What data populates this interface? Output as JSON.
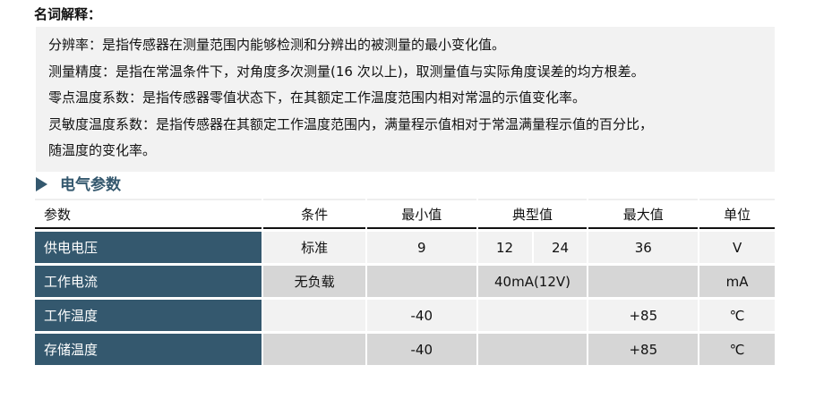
{
  "glossary": {
    "title": "名词解释：",
    "items": [
      "分辨率：是指传感器在测量范围内能够检测和分辨出的被测量的最小变化值。",
      "测量精度：是指在常温条件下，对角度多次测量(16 次以上)，取测量值与实际角度误差的均方根差。",
      "零点温度系数：是指传感器零值状态下，在其额定工作温度范围内相对常温的示值变化率。",
      "灵敏度温度系数：是指传感器在其额定工作温度范围内，满量程示值相对于常温满量程示值的百分比，",
      "随温度的变化率。"
    ]
  },
  "section": {
    "title": "电气参数",
    "icon": "triangle-right-icon"
  },
  "table": {
    "headers": [
      "参数",
      "条件",
      "最小值",
      "典型值",
      "最大值",
      "单位"
    ],
    "rows": [
      {
        "param": "供电电压",
        "cond": "标准",
        "min": "9",
        "typ1": "12",
        "typ2": "24",
        "max": "36",
        "unit": "V"
      },
      {
        "param": "工作电流",
        "cond": "无负载",
        "min": "",
        "typ": "40mA(12V)",
        "max": "",
        "unit": "mA"
      },
      {
        "param": "工作温度",
        "cond": "",
        "min": "-40",
        "typ": "",
        "max": "+85",
        "unit": "℃"
      },
      {
        "param": "存储温度",
        "cond": "",
        "min": "-40",
        "typ": "",
        "max": "+85",
        "unit": "℃"
      }
    ]
  },
  "colors": {
    "header_col": "#34586e",
    "row_light": "#f2f2f2",
    "row_dark": "#d6d6d6"
  }
}
